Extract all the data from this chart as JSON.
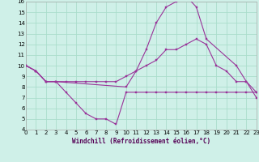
{
  "xlabel": "Windchill (Refroidissement éolien,°C)",
  "bg_color": "#cff0e8",
  "grid_color": "#aaddcc",
  "line_color": "#993399",
  "xlim": [
    0,
    23
  ],
  "ylim": [
    4,
    16
  ],
  "xticks": [
    0,
    1,
    2,
    3,
    4,
    5,
    6,
    7,
    8,
    9,
    10,
    11,
    12,
    13,
    14,
    15,
    16,
    17,
    18,
    19,
    20,
    21,
    22,
    23
  ],
  "yticks": [
    4,
    5,
    6,
    7,
    8,
    9,
    10,
    11,
    12,
    13,
    14,
    15,
    16
  ],
  "line1_x": [
    0,
    1,
    2,
    3,
    4,
    5,
    6,
    7,
    8,
    9,
    10,
    11,
    12,
    13,
    14,
    15,
    16,
    17,
    18,
    19,
    20,
    21,
    22,
    23
  ],
  "line1_y": [
    10,
    9.5,
    8.5,
    8.5,
    7.5,
    6.5,
    5.5,
    5.0,
    5.0,
    4.5,
    7.5,
    7.5,
    7.5,
    7.5,
    7.5,
    7.5,
    7.5,
    7.5,
    7.5,
    7.5,
    7.5,
    7.5,
    7.5,
    7.5
  ],
  "line2_x": [
    0,
    1,
    2,
    3,
    4,
    5,
    6,
    7,
    8,
    9,
    10,
    11,
    12,
    13,
    14,
    15,
    16,
    17,
    18,
    19,
    20,
    21,
    22,
    23
  ],
  "line2_y": [
    10,
    9.5,
    8.5,
    8.5,
    8.5,
    8.5,
    8.5,
    8.5,
    8.5,
    8.5,
    9.0,
    9.5,
    10.0,
    10.5,
    11.5,
    11.5,
    12.0,
    12.5,
    12.0,
    10.0,
    9.5,
    8.5,
    8.5,
    7.5
  ],
  "line3_x": [
    0,
    1,
    2,
    3,
    10,
    11,
    12,
    13,
    14,
    15,
    16,
    17,
    18,
    21,
    22,
    23
  ],
  "line3_y": [
    10,
    9.5,
    8.5,
    8.5,
    8.0,
    9.5,
    11.5,
    14.0,
    15.5,
    16.0,
    16.5,
    15.5,
    12.5,
    10.0,
    8.5,
    7.0
  ]
}
